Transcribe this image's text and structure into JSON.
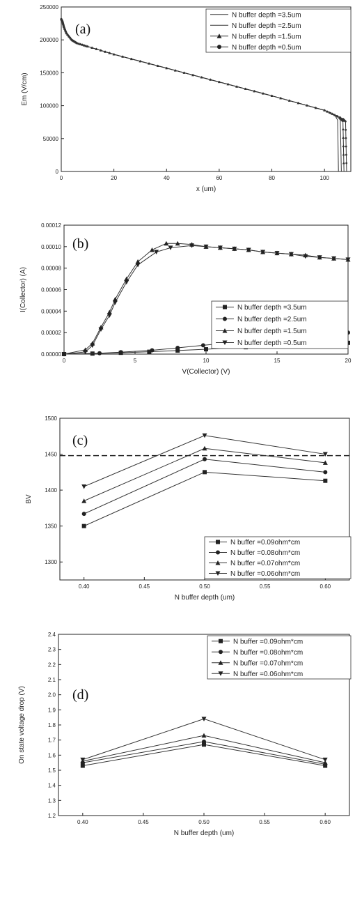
{
  "chart_data": [
    {
      "panel": "(a)",
      "type": "line",
      "xlabel": "x (um)",
      "ylabel": "Em (V/cm)",
      "xlim": [
        0,
        110
      ],
      "ylim": [
        0,
        250000
      ],
      "xticks": [
        0,
        20,
        40,
        60,
        80,
        100
      ],
      "yticks": [
        0,
        50000,
        100000,
        150000,
        200000,
        250000
      ],
      "legend_position": "top-right",
      "markers": [
        "none",
        "none",
        "triangle-up",
        "circle"
      ],
      "series": [
        {
          "name": "N buffer depth =3.5um",
          "x": [
            0,
            0.5,
            1,
            2,
            4,
            6,
            10,
            20,
            40,
            60,
            80,
            100,
            104,
            105,
            105.3
          ],
          "y": [
            232000,
            228000,
            220000,
            210000,
            200000,
            195000,
            190000,
            178000,
            157000,
            136000,
            115000,
            93000,
            85000,
            78000,
            0
          ]
        },
        {
          "name": "N buffer depth =2.5um",
          "x": [
            0,
            0.5,
            1,
            2,
            4,
            6,
            10,
            20,
            40,
            60,
            80,
            100,
            105,
            106,
            106.4
          ],
          "y": [
            232000,
            228000,
            220000,
            210000,
            200000,
            195000,
            190000,
            178000,
            157000,
            136000,
            115000,
            93000,
            83000,
            78000,
            0
          ]
        },
        {
          "name": "N buffer depth =1.5um",
          "x": [
            0,
            0.5,
            1,
            2,
            4,
            6,
            10,
            20,
            40,
            60,
            80,
            100,
            106,
            107,
            107.4
          ],
          "y": [
            232000,
            228000,
            220000,
            210000,
            200000,
            195000,
            190000,
            178000,
            157000,
            136000,
            115000,
            93000,
            82000,
            77000,
            0
          ]
        },
        {
          "name": "N buffer depth =0.5um",
          "x": [
            0,
            0.5,
            1,
            2,
            4,
            6,
            10,
            20,
            40,
            60,
            80,
            100,
            107,
            108,
            108.4
          ],
          "y": [
            232000,
            228000,
            220000,
            210000,
            200000,
            195000,
            190000,
            178000,
            157000,
            136000,
            115000,
            93000,
            80000,
            76000,
            0
          ]
        }
      ]
    },
    {
      "panel": "(b)",
      "type": "line",
      "xlabel": "V(Collector) (V)",
      "ylabel": "I(Collector) (A)",
      "xlim": [
        0,
        20
      ],
      "ylim": [
        0,
        0.00012
      ],
      "xticks": [
        0,
        5,
        10,
        15,
        20
      ],
      "yticks": [
        0,
        2e-05,
        4e-05,
        6e-05,
        8e-05,
        0.0001,
        0.00012
      ],
      "xtick_labels": [
        "0",
        "5",
        "10",
        "15",
        "20"
      ],
      "ytick_labels": [
        "0.00000",
        "0.00002",
        "0.00004",
        "0.00006",
        "0.00008",
        "0.00010",
        "0.00012"
      ],
      "legend_position": "center-right",
      "markers": [
        "square",
        "circle",
        "triangle-up",
        "triangle-down"
      ],
      "series": [
        {
          "name": "N buffer depth =3.5um",
          "x": [
            0,
            2,
            4,
            6,
            8,
            10,
            12.8,
            16,
            20
          ],
          "y": [
            0,
            5e-07,
            1.2e-06,
            2.2e-06,
            3.3e-06,
            4.5e-06,
            6.4e-06,
            8.2e-06,
            1.05e-05
          ]
        },
        {
          "name": "N buffer depth =2.5um",
          "x": [
            0,
            2.5,
            4,
            6.2,
            8,
            9.8,
            12,
            14,
            17,
            20
          ],
          "y": [
            0,
            8e-07,
            1.8e-06,
            3.6e-06,
            5.8e-06,
            8.2e-06,
            1.1e-05,
            1.34e-05,
            1.62e-05,
            2e-05
          ]
        },
        {
          "name": "N buffer depth =1.5um",
          "x": [
            0,
            1.5,
            2,
            2.6,
            3.2,
            3.6,
            4.4,
            5.2,
            6.2,
            7.2,
            8,
            9,
            10,
            11,
            12,
            13,
            14,
            15,
            16,
            17,
            18,
            19,
            20
          ],
          "y": [
            0,
            4e-06,
            1e-05,
            2.5e-05,
            3.9e-05,
            5.1e-05,
            7e-05,
            8.6e-05,
            9.7e-05,
            0.000103,
            0.000103,
            0.000102,
            0.0001,
            9.9e-05,
            9.8e-05,
            9.7e-05,
            9.5e-05,
            9.4e-05,
            9.3e-05,
            9.2e-05,
            9e-05,
            8.9e-05,
            8.8e-05
          ]
        },
        {
          "name": "N buffer depth =0.5um",
          "x": [
            0,
            1.5,
            2,
            2.6,
            3.2,
            3.6,
            4.4,
            5.2,
            6.5,
            7.5,
            9,
            10,
            11,
            12,
            13,
            14,
            15,
            16,
            17,
            18,
            19,
            20
          ],
          "y": [
            0,
            2e-06,
            8e-06,
            2.3e-05,
            3.6e-05,
            4.8e-05,
            6.7e-05,
            8.3e-05,
            9.5e-05,
            9.9e-05,
            0.000101,
            0.0001,
            9.9e-05,
            9.8e-05,
            9.7e-05,
            9.5e-05,
            9.4e-05,
            9.3e-05,
            9.1e-05,
            9e-05,
            8.9e-05,
            8.8e-05
          ]
        }
      ]
    },
    {
      "panel": "(c)",
      "type": "line",
      "xlabel": "N buffer depth (um)",
      "ylabel": "BV",
      "xlim": [
        0.38,
        0.62
      ],
      "ylim": [
        1275,
        1500
      ],
      "xticks": [
        0.4,
        0.45,
        0.5,
        0.55,
        0.6
      ],
      "yticks": [
        1300,
        1350,
        1400,
        1450,
        1500
      ],
      "xtick_labels": [
        "0.40",
        "0.45",
        "0.50",
        "0.55",
        "0.60"
      ],
      "reference_line": 1448,
      "legend_position": "bottom-right",
      "markers": [
        "square",
        "circle",
        "triangle-up",
        "triangle-down"
      ],
      "series": [
        {
          "name": "N buffer =0.09ohm*cm",
          "x": [
            0.4,
            0.5,
            0.6
          ],
          "y": [
            1350,
            1425,
            1413
          ]
        },
        {
          "name": "N buffer =0.08ohm*cm",
          "x": [
            0.4,
            0.5,
            0.6
          ],
          "y": [
            1367,
            1443,
            1425
          ]
        },
        {
          "name": "N buffer =0.07ohm*cm",
          "x": [
            0.4,
            0.5,
            0.6
          ],
          "y": [
            1385,
            1458,
            1438
          ]
        },
        {
          "name": "N buffer =0.06ohm*cm",
          "x": [
            0.4,
            0.5,
            0.6
          ],
          "y": [
            1405,
            1476,
            1450
          ]
        }
      ]
    },
    {
      "panel": "(d)",
      "type": "line",
      "xlabel": "N buffer depth (um)",
      "ylabel": "On state voltage drop (V)",
      "xlim": [
        0.38,
        0.62
      ],
      "ylim": [
        1.2,
        2.4
      ],
      "xticks": [
        0.4,
        0.45,
        0.5,
        0.55,
        0.6
      ],
      "yticks": [
        1.2,
        1.3,
        1.4,
        1.5,
        1.6,
        1.7,
        1.8,
        1.9,
        2.0,
        2.1,
        2.2,
        2.3,
        2.4
      ],
      "xtick_labels": [
        "0.40",
        "0.45",
        "0.50",
        "0.55",
        "0.60"
      ],
      "ytick_labels": [
        "1.2",
        "1.3",
        "1.4",
        "1.5",
        "1.6",
        "1.7",
        "1.8",
        "1.9",
        "2.0",
        "2.1",
        "2.2",
        "2.3",
        "2.4"
      ],
      "legend_position": "top-right",
      "markers": [
        "square",
        "circle",
        "triangle-up",
        "triangle-down"
      ],
      "series": [
        {
          "name": "N buffer =0.09ohm*cm",
          "x": [
            0.4,
            0.5,
            0.6
          ],
          "y": [
            1.53,
            1.67,
            1.53
          ]
        },
        {
          "name": "N buffer =0.08ohm*cm",
          "x": [
            0.4,
            0.5,
            0.6
          ],
          "y": [
            1.55,
            1.69,
            1.54
          ]
        },
        {
          "name": "N buffer =0.07ohm*cm",
          "x": [
            0.4,
            0.5,
            0.6
          ],
          "y": [
            1.56,
            1.73,
            1.55
          ]
        },
        {
          "name": "N buffer =0.06ohm*cm",
          "x": [
            0.4,
            0.5,
            0.6
          ],
          "y": [
            1.57,
            1.84,
            1.57
          ]
        }
      ]
    }
  ]
}
